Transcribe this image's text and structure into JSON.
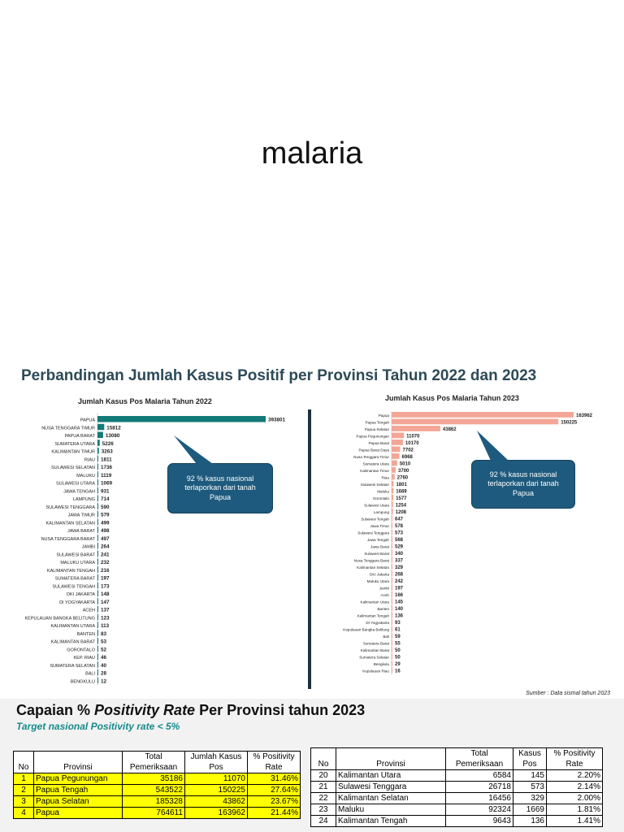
{
  "slide": {
    "title": "malaria"
  },
  "comparison": {
    "title": "Perbandingan Jumlah Kasus Positif per Provinsi Tahun 2022 dan 2023"
  },
  "colors": {
    "bar_2022": "#137a78",
    "bar_2023": "#f4a696",
    "callout": "#1e5a7d",
    "highlight": "#ffff00",
    "subtitle": "#178a8c",
    "heading": "#2d4a57"
  },
  "chart_data": [
    {
      "type": "bar",
      "orientation": "horizontal",
      "title": "Jumlah Kasus Pos Malaria Tahun 2022",
      "categories": [
        "PAPUA",
        "NUSA TENGGARA TIMUR",
        "PAPUA BARAT",
        "SUMATERA UTARA",
        "KALIMANTAN TIMUR",
        "RIAU",
        "SULAWESI SELATAN",
        "MALUKU",
        "SULAWESI UTARA",
        "JAWA TENGAH",
        "LAMPUNG",
        "SULAWESI TENGGARA",
        "JAWA TIMUR",
        "KALIMANTAN SELATAN",
        "JAWA BARAT",
        "NUSA TENGGARA BARAT",
        "JAMBI",
        "SULAWESI BARAT",
        "MALUKU UTARA",
        "KALIMANTAN TENGAH",
        "SUMATERA BARAT",
        "SULAWESI TENGAH",
        "DKI JAKARTA",
        "DI YOGYAKARTA",
        "ACEH",
        "KEPULAUAN BANGKA BELITUNG",
        "KALIMANTAN UTARA",
        "BANTEN",
        "KALIMANTAN BARAT",
        "GORONTALO",
        "KEP. RIAU",
        "SUMATERA SELATAN",
        "BALI",
        "BENGKULU"
      ],
      "values": [
        393801,
        15812,
        13080,
        5226,
        3263,
        1811,
        1736,
        1119,
        1069,
        931,
        714,
        590,
        579,
        499,
        498,
        497,
        264,
        241,
        232,
        216,
        197,
        173,
        148,
        147,
        137,
        123,
        113,
        83,
        53,
        52,
        46,
        40,
        28,
        12
      ],
      "callout": "92 % kasus nasional terlaporkan dari tanah Papua"
    },
    {
      "type": "bar",
      "orientation": "horizontal",
      "title": "Jumlah Kasus Pos Malaria Tahun 2023",
      "categories": [
        "Papua",
        "Papua Tengah",
        "Papua Selatan",
        "Papua Pegunungan",
        "Papua Barat",
        "Papua Barat Daya",
        "Nusa Tenggara Timur",
        "Sumatera Utara",
        "Kalimantan Timur",
        "Riau",
        "Sulawesi Selatan",
        "Maluku",
        "Gorontalo",
        "Sulawesi Utara",
        "Lampung",
        "Sulawesi Tengah",
        "Jawa Timur",
        "Sulawesi Tenggara",
        "Jawa Tengah",
        "Jawa Barat",
        "Sulawesi Barat",
        "Nusa Tenggara Barat",
        "Kalimantan Selatan",
        "DKI Jakarta",
        "Maluku Utara",
        "Jambi",
        "Aceh",
        "Kalimantan Utara",
        "Banten",
        "Kalimantan Tengah",
        "DI Yogyakarta",
        "Kepulauan Bangka Belitung",
        "Bali",
        "Sumatera Barat",
        "Kalimantan Barat",
        "Sumatera Selatan",
        "Bengkulu",
        "Kepulauan Riau"
      ],
      "values": [
        163962,
        150225,
        43862,
        11070,
        10170,
        7702,
        6968,
        5010,
        3700,
        2760,
        1801,
        1669,
        1577,
        1254,
        1208,
        647,
        578,
        573,
        568,
        529,
        340,
        337,
        329,
        268,
        242,
        197,
        166,
        145,
        140,
        136,
        93,
        61,
        59,
        55,
        50,
        50,
        29,
        16
      ],
      "callout": "92 % kasus nasional terlaporkan dari tanah Papua",
      "source": "Sumber : Data sismal tahun 2023"
    }
  ],
  "positivity": {
    "title_pre": "Capaian  % ",
    "title_italic": "Positivity Rate",
    "title_post": " Per Provinsi tahun 2023",
    "subtitle": "Target nasional Positivity rate < 5%",
    "left_headers": [
      "No",
      "Provinsi",
      "Total Pemeriksaan",
      "Jumlah Kasus Pos",
      "% Positivity Rate"
    ],
    "left_rows": [
      [
        "1",
        "Papua Pegunungan",
        "35186",
        "11070",
        "31.46%"
      ],
      [
        "2",
        "Papua Tengah",
        "543522",
        "150225",
        "27.64%"
      ],
      [
        "3",
        "Papua Selatan",
        "185328",
        "43862",
        "23.67%"
      ],
      [
        "4",
        "Papua",
        "764611",
        "163962",
        "21.44%"
      ]
    ],
    "right_headers": [
      "No",
      "Provinsi",
      "Total Pemeriksaan",
      "Kasus Pos",
      "% Positivity Rate"
    ],
    "right_rows": [
      [
        "20",
        "Kalimantan Utara",
        "6584",
        "145",
        "2.20%"
      ],
      [
        "21",
        "Sulawesi Tenggara",
        "26718",
        "573",
        "2.14%"
      ],
      [
        "22",
        "Kalimantan Selatan",
        "16456",
        "329",
        "2.00%"
      ],
      [
        "23",
        "Maluku",
        "92324",
        "1669",
        "1.81%"
      ],
      [
        "24",
        "Kalimantan Tengah",
        "9643",
        "136",
        "1.41%"
      ]
    ]
  }
}
